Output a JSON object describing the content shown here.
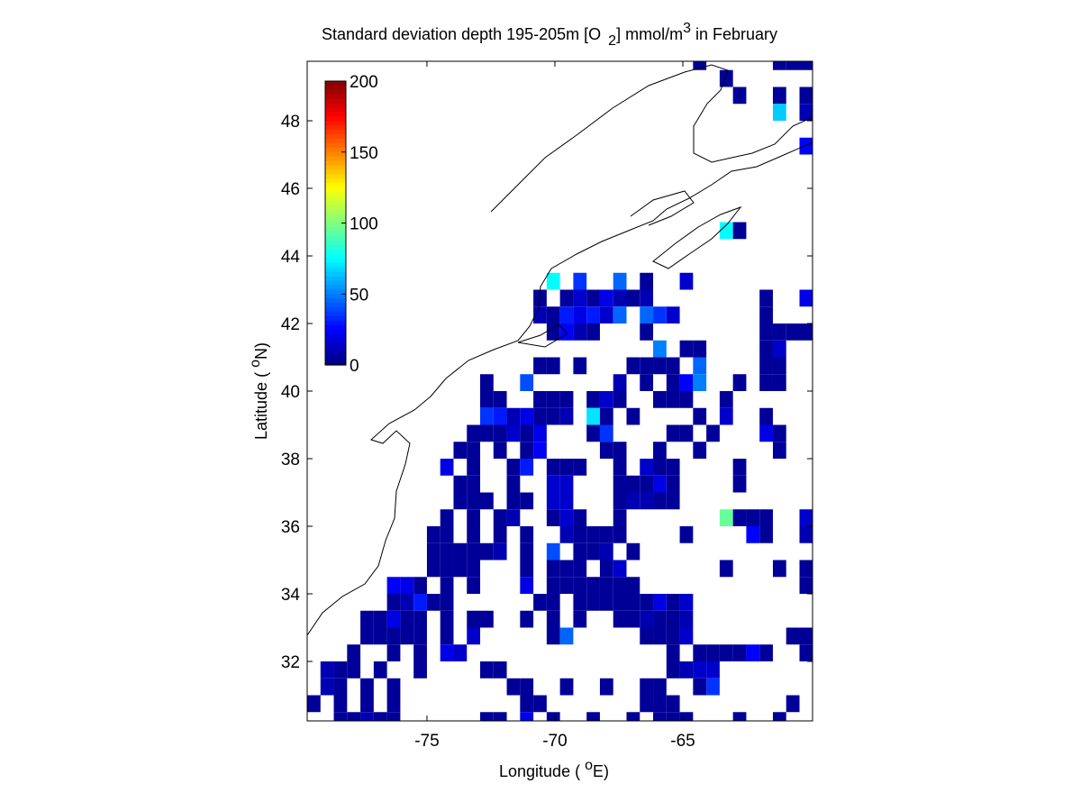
{
  "chart_data": {
    "type": "heatmap",
    "title": [
      "Standard deviation depth 195-205m [O",
      "2",
      "] mmol/m",
      "3",
      " in February"
    ],
    "xlabel": [
      "Longitude ( ",
      "o",
      "E)"
    ],
    "ylabel": [
      "Latitude ( ",
      "o",
      "N)"
    ],
    "xlim": [
      -79.68,
      -59.93
    ],
    "ylim": [
      30.24,
      49.76
    ],
    "xticks": [
      -75,
      -70,
      -65
    ],
    "yticks": [
      32,
      34,
      36,
      38,
      40,
      42,
      44,
      46,
      48
    ],
    "clim": [
      0,
      200
    ],
    "cticks": [
      0,
      50,
      100,
      150,
      200
    ],
    "colormap": "jet",
    "rows": [
      {
        "y": 49.75,
        "x": [
          -64.34,
          -61.22,
          -60.7,
          -60.18
        ],
        "values": [
          5,
          5,
          5,
          5
        ]
      },
      {
        "y": 49.25,
        "x": [
          -63.3
        ],
        "values": [
          5
        ]
      },
      {
        "y": 48.75,
        "x": [
          -62.78,
          -61.22,
          -60.18
        ],
        "values": [
          5,
          5,
          5
        ]
      },
      {
        "y": 48.25,
        "x": [
          -61.22,
          -60.18
        ],
        "values": [
          65,
          10
        ]
      },
      {
        "y": 47.25,
        "x": [
          -60.18
        ],
        "values": [
          25
        ]
      },
      {
        "y": 44.75,
        "x": [
          -63.3,
          -62.78
        ],
        "values": [
          75,
          5
        ]
      },
      {
        "y": 43.25,
        "x": [
          -70.06,
          -69.02,
          -67.46,
          -66.42,
          -64.86
        ],
        "values": [
          75,
          35,
          45,
          5,
          15
        ]
      },
      {
        "y": 42.75,
        "x": [
          -70.58,
          -69.54,
          -69.02,
          -68.5,
          -67.98,
          -67.46,
          -66.94,
          -66.42,
          -61.74,
          -60.18
        ],
        "values": [
          5,
          5,
          15,
          5,
          20,
          10,
          5,
          10,
          5,
          20
        ]
      },
      {
        "y": 42.25,
        "x": [
          -70.58,
          -70.06,
          -69.54,
          -69.02,
          -68.5,
          -67.98,
          -67.46,
          -66.42,
          -65.9,
          -65.38,
          -61.74
        ],
        "values": [
          10,
          5,
          30,
          20,
          30,
          15,
          45,
          45,
          35,
          15,
          5
        ]
      },
      {
        "y": 41.75,
        "x": [
          -70.06,
          -69.54,
          -69.02,
          -68.5,
          -66.42,
          -61.74,
          -61.22,
          -60.7,
          -60.18
        ],
        "values": [
          5,
          25,
          10,
          5,
          5,
          5,
          5,
          5,
          5
        ]
      },
      {
        "y": 41.25,
        "x": [
          -65.9,
          -64.86,
          -64.34,
          -61.74,
          -61.22
        ],
        "values": [
          50,
          5,
          5,
          5,
          15
        ]
      },
      {
        "y": 40.75,
        "x": [
          -70.58,
          -70.06,
          -69.02,
          -66.94,
          -66.42,
          -65.9,
          -65.38,
          -64.34,
          -61.74,
          -61.22
        ],
        "values": [
          5,
          5,
          5,
          5,
          5,
          5,
          5,
          45,
          5,
          5
        ]
      },
      {
        "y": 40.25,
        "x": [
          -72.66,
          -71.1,
          -67.46,
          -66.42,
          -65.38,
          -64.86,
          -64.34,
          -62.78,
          -61.74,
          -61.22
        ],
        "values": [
          5,
          40,
          10,
          5,
          5,
          25,
          50,
          5,
          5,
          5
        ]
      },
      {
        "y": 39.75,
        "x": [
          -72.66,
          -72.14,
          -70.58,
          -70.06,
          -69.54,
          -68.5,
          -67.98,
          -67.46,
          -65.9,
          -65.38,
          -64.86,
          -63.3
        ],
        "values": [
          5,
          5,
          5,
          5,
          5,
          5,
          15,
          5,
          5,
          5,
          5,
          5
        ]
      },
      {
        "y": 39.25,
        "x": [
          -72.66,
          -72.14,
          -71.62,
          -71.1,
          -70.58,
          -70.06,
          -69.54,
          -68.5,
          -67.98,
          -66.94,
          -64.34,
          -63.3,
          -61.74
        ],
        "values": [
          35,
          30,
          10,
          20,
          5,
          5,
          10,
          70,
          5,
          5,
          5,
          15,
          5
        ]
      },
      {
        "y": 38.75,
        "x": [
          -73.18,
          -72.66,
          -72.14,
          -71.62,
          -71.1,
          -70.58,
          -68.5,
          -67.98,
          -65.38,
          -64.86,
          -63.82,
          -61.74,
          -61.22
        ],
        "values": [
          5,
          5,
          5,
          15,
          5,
          20,
          5,
          35,
          5,
          5,
          5,
          20,
          5
        ]
      },
      {
        "y": 38.25,
        "x": [
          -73.7,
          -73.18,
          -72.14,
          -71.1,
          -70.58,
          -67.98,
          -67.46,
          -65.9,
          -64.34,
          -61.22
        ],
        "values": [
          5,
          5,
          5,
          5,
          25,
          5,
          5,
          5,
          5,
          5
        ]
      },
      {
        "y": 37.75,
        "x": [
          -74.22,
          -73.18,
          -71.62,
          -71.1,
          -70.06,
          -69.54,
          -69.02,
          -67.46,
          -66.42,
          -65.9,
          -65.38,
          -62.78
        ],
        "values": [
          20,
          5,
          5,
          30,
          5,
          5,
          5,
          5,
          15,
          5,
          5,
          5
        ]
      },
      {
        "y": 37.25,
        "x": [
          -73.7,
          -73.18,
          -71.62,
          -70.06,
          -69.54,
          -67.46,
          -66.94,
          -66.42,
          -65.9,
          -65.38,
          -62.78
        ],
        "values": [
          5,
          5,
          5,
          15,
          15,
          5,
          5,
          5,
          20,
          5,
          5
        ]
      },
      {
        "y": 36.75,
        "x": [
          -73.7,
          -73.18,
          -72.66,
          -71.62,
          -71.1,
          -70.06,
          -69.54,
          -67.46,
          -66.94,
          -66.42,
          -65.9,
          -65.38
        ],
        "values": [
          5,
          5,
          5,
          5,
          5,
          15,
          15,
          5,
          10,
          10,
          5,
          5
        ]
      },
      {
        "y": 36.25,
        "x": [
          -74.22,
          -73.18,
          -72.14,
          -71.62,
          -70.06,
          -69.54,
          -69.02,
          -67.46,
          -63.3,
          -62.78,
          -62.26,
          -61.74,
          -60.18
        ],
        "values": [
          5,
          5,
          5,
          10,
          5,
          15,
          5,
          5,
          95,
          5,
          5,
          5,
          15
        ]
      },
      {
        "y": 35.75,
        "x": [
          -74.74,
          -74.22,
          -73.18,
          -72.14,
          -71.1,
          -69.54,
          -69.02,
          -68.5,
          -67.98,
          -67.46,
          -64.86,
          -62.26,
          -61.74,
          -60.18
        ],
        "values": [
          5,
          5,
          5,
          5,
          5,
          10,
          5,
          5,
          5,
          5,
          5,
          25,
          5,
          10
        ]
      },
      {
        "y": 35.25,
        "x": [
          -74.74,
          -74.22,
          -73.7,
          -73.18,
          -72.66,
          -72.14,
          -71.1,
          -70.06,
          -69.02,
          -68.5,
          -67.98,
          -66.94
        ],
        "values": [
          5,
          5,
          5,
          5,
          5,
          10,
          5,
          40,
          5,
          5,
          10,
          5
        ]
      },
      {
        "y": 34.75,
        "x": [
          -74.74,
          -74.22,
          -73.7,
          -73.18,
          -71.1,
          -70.06,
          -69.54,
          -69.02,
          -67.98,
          -67.46,
          -63.3,
          -61.22,
          -60.18
        ],
        "values": [
          5,
          5,
          5,
          5,
          5,
          5,
          5,
          5,
          5,
          15,
          5,
          5,
          5
        ]
      },
      {
        "y": 34.25,
        "x": [
          -76.3,
          -75.78,
          -75.26,
          -74.22,
          -73.18,
          -71.1,
          -70.06,
          -69.54,
          -69.02,
          -68.5,
          -67.98,
          -67.46,
          -66.94,
          -60.18
        ],
        "values": [
          25,
          20,
          5,
          5,
          5,
          20,
          5,
          5,
          5,
          5,
          5,
          5,
          5,
          5
        ]
      },
      {
        "y": 33.75,
        "x": [
          -76.3,
          -75.78,
          -75.26,
          -74.74,
          -74.22,
          -70.58,
          -70.06,
          -69.02,
          -68.5,
          -67.98,
          -67.46,
          -66.94,
          -66.42,
          -65.9,
          -65.38,
          -64.86
        ],
        "values": [
          5,
          10,
          30,
          5,
          5,
          5,
          5,
          5,
          5,
          5,
          5,
          5,
          5,
          20,
          5,
          15
        ]
      },
      {
        "y": 33.25,
        "x": [
          -77.34,
          -76.82,
          -76.3,
          -75.78,
          -75.26,
          -74.22,
          -73.18,
          -72.66,
          -71.1,
          -70.06,
          -69.02,
          -67.46,
          -66.94,
          -66.42,
          -65.9,
          -65.38,
          -64.86
        ],
        "values": [
          5,
          5,
          20,
          5,
          5,
          5,
          5,
          5,
          5,
          5,
          5,
          5,
          5,
          10,
          5,
          5,
          10
        ]
      },
      {
        "y": 32.75,
        "x": [
          -77.34,
          -76.82,
          -76.3,
          -75.78,
          -75.26,
          -74.22,
          -73.18,
          -70.06,
          -69.54,
          -66.42,
          -65.9,
          -65.38,
          -64.86,
          -60.7,
          -60.18
        ],
        "values": [
          5,
          5,
          5,
          5,
          5,
          5,
          15,
          5,
          45,
          5,
          5,
          5,
          15,
          5,
          5
        ]
      },
      {
        "y": 32.25,
        "x": [
          -77.86,
          -76.3,
          -75.26,
          -74.22,
          -73.7,
          -65.38,
          -64.34,
          -63.82,
          -63.3,
          -62.78,
          -62.26,
          -61.74,
          -60.18
        ],
        "values": [
          5,
          5,
          5,
          20,
          15,
          5,
          5,
          5,
          5,
          5,
          25,
          5,
          5
        ]
      },
      {
        "y": 31.75,
        "x": [
          -78.9,
          -78.38,
          -77.86,
          -76.82,
          -75.26,
          -72.66,
          -72.14,
          -65.38,
          -64.86,
          -64.34,
          -63.82
        ],
        "values": [
          10,
          5,
          5,
          5,
          5,
          5,
          5,
          5,
          10,
          15,
          15
        ]
      },
      {
        "y": 31.25,
        "x": [
          -78.9,
          -78.38,
          -77.34,
          -76.3,
          -71.62,
          -71.1,
          -69.54,
          -67.98,
          -66.42,
          -65.9,
          -64.34,
          -63.82
        ],
        "values": [
          10,
          5,
          5,
          5,
          5,
          5,
          5,
          5,
          5,
          5,
          5,
          35
        ]
      },
      {
        "y": 30.75,
        "x": [
          -79.42,
          -78.38,
          -77.34,
          -76.3,
          -71.1,
          -70.58,
          -66.42,
          -65.9,
          -65.38,
          -60.7
        ],
        "values": [
          5,
          5,
          5,
          5,
          5,
          5,
          5,
          5,
          5,
          5
        ]
      },
      {
        "y": 30.25,
        "x": [
          -78.38,
          -77.86,
          -77.34,
          -76.82,
          -76.3,
          -72.66,
          -72.14,
          -71.1,
          -70.06,
          -68.5,
          -66.94,
          -65.9,
          -65.38,
          -64.86,
          -62.78,
          -61.22
        ],
        "values": [
          5,
          5,
          10,
          5,
          5,
          5,
          5,
          20,
          5,
          5,
          5,
          5,
          5,
          5,
          5,
          5
        ]
      }
    ]
  }
}
